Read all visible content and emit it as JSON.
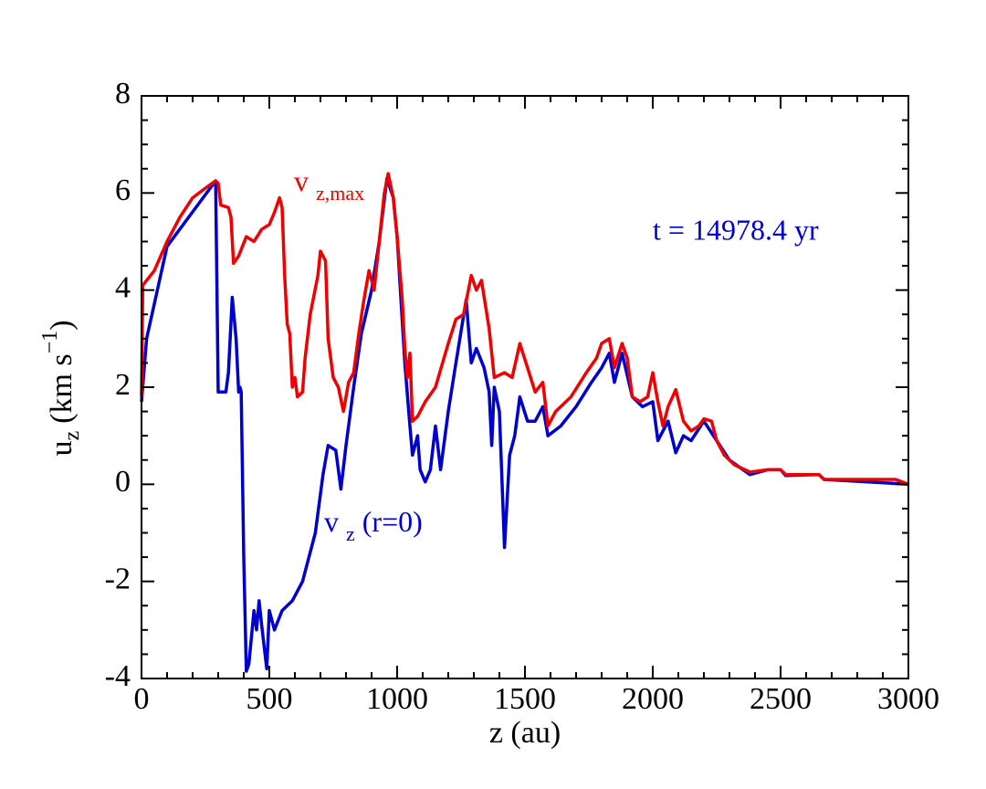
{
  "chart_data": {
    "type": "line",
    "x_label": "z (au)",
    "y_label": {
      "main": "u",
      "sub": "z",
      "unit": "(km s",
      "sup": "−1",
      "close": ")"
    },
    "xlim": [
      0,
      3000
    ],
    "ylim": [
      -4,
      8
    ],
    "xticks": [
      0,
      500,
      1000,
      1500,
      2000,
      2500,
      3000
    ],
    "yticks": [
      -4,
      -2,
      0,
      2,
      4,
      6,
      8
    ],
    "annotation": "t =  14978.4 yr",
    "annotation_color": "#0000cc",
    "series": [
      {
        "name": {
          "main": "v",
          "sub": "z",
          "after": "(r=0)"
        },
        "color": "#0000cc",
        "x": [
          0,
          20,
          100,
          290,
          300,
          330,
          340,
          355,
          370,
          380,
          385,
          390,
          400,
          410,
          420,
          440,
          450,
          460,
          470,
          490,
          500,
          520,
          550,
          590,
          630,
          680,
          710,
          730,
          760,
          780,
          800,
          830,
          860,
          900,
          930,
          960,
          985,
          1000,
          1030,
          1050,
          1060,
          1080,
          1090,
          1110,
          1130,
          1150,
          1170,
          1200,
          1230,
          1270,
          1290,
          1310,
          1340,
          1360,
          1370,
          1380,
          1400,
          1420,
          1440,
          1460,
          1480,
          1510,
          1540,
          1570,
          1590,
          1640,
          1700,
          1760,
          1800,
          1830,
          1850,
          1880,
          1920,
          1960,
          2000,
          2020,
          2060,
          2090,
          2120,
          2150,
          2200,
          2250,
          2300,
          2380,
          2450,
          2500,
          2520,
          2650,
          2670,
          3000
        ],
        "values": [
          1.7,
          3.0,
          4.9,
          6.25,
          1.9,
          1.9,
          2.3,
          3.85,
          3.0,
          1.9,
          2.0,
          1.9,
          -1.5,
          -3.85,
          -3.7,
          -2.6,
          -3.0,
          -2.4,
          -2.9,
          -3.8,
          -2.6,
          -3.0,
          -2.6,
          -2.4,
          -2.0,
          -1.0,
          0.2,
          0.8,
          0.7,
          -0.1,
          0.8,
          2.0,
          3.1,
          4.0,
          5.0,
          6.3,
          5.9,
          5.1,
          2.5,
          1.2,
          0.6,
          1.0,
          0.3,
          0.05,
          0.3,
          1.2,
          0.3,
          1.5,
          2.5,
          3.8,
          2.5,
          2.8,
          2.4,
          1.9,
          0.8,
          2.0,
          1.5,
          -1.3,
          0.6,
          1.0,
          1.8,
          1.3,
          1.3,
          1.6,
          1.0,
          1.2,
          1.6,
          2.1,
          2.4,
          2.7,
          2.1,
          2.7,
          1.8,
          1.6,
          1.7,
          0.9,
          1.3,
          0.65,
          1.0,
          0.9,
          1.3,
          0.9,
          0.5,
          0.2,
          0.3,
          0.3,
          0.18,
          0.2,
          0.1,
          0.0
        ]
      },
      {
        "name": {
          "main": "v",
          "sub": "z,max"
        },
        "color": "#ee0000",
        "x": [
          0,
          5,
          50,
          100,
          150,
          200,
          250,
          290,
          300,
          310,
          340,
          350,
          360,
          380,
          410,
          440,
          470,
          500,
          520,
          540,
          550,
          560,
          570,
          580,
          590,
          600,
          610,
          630,
          640,
          660,
          690,
          700,
          720,
          730,
          750,
          770,
          790,
          810,
          830,
          850,
          870,
          890,
          910,
          930,
          950,
          965,
          985,
          1000,
          1020,
          1030,
          1040,
          1050,
          1060,
          1080,
          1110,
          1150,
          1200,
          1230,
          1260,
          1290,
          1310,
          1330,
          1360,
          1380,
          1420,
          1450,
          1480,
          1510,
          1540,
          1570,
          1590,
          1620,
          1680,
          1740,
          1780,
          1800,
          1830,
          1850,
          1880,
          1900,
          1920,
          1950,
          1980,
          2000,
          2020,
          2040,
          2060,
          2090,
          2120,
          2150,
          2180,
          2200,
          2230,
          2250,
          2280,
          2320,
          2380,
          2450,
          2500,
          2520,
          2650,
          2670,
          2900,
          2950,
          3000
        ],
        "values": [
          1.8,
          4.1,
          4.4,
          5.0,
          5.5,
          5.9,
          6.1,
          6.25,
          6.2,
          5.75,
          5.7,
          5.5,
          4.55,
          4.7,
          5.1,
          5.0,
          5.25,
          5.35,
          5.6,
          5.9,
          5.7,
          4.3,
          3.3,
          3.1,
          2.0,
          2.2,
          1.8,
          1.9,
          2.6,
          3.5,
          4.3,
          4.8,
          4.6,
          3.0,
          2.2,
          2.0,
          1.5,
          2.1,
          2.3,
          3.1,
          3.8,
          4.4,
          4.0,
          5.0,
          6.0,
          6.4,
          5.9,
          5.1,
          3.8,
          2.8,
          2.2,
          2.7,
          1.3,
          1.4,
          1.7,
          2.0,
          2.9,
          3.4,
          3.5,
          4.3,
          4.0,
          4.2,
          3.2,
          2.2,
          2.3,
          2.2,
          2.9,
          2.4,
          1.9,
          2.1,
          1.2,
          1.5,
          1.8,
          2.3,
          2.6,
          2.9,
          3.0,
          2.4,
          2.9,
          2.6,
          1.8,
          1.7,
          1.8,
          2.3,
          1.7,
          1.2,
          1.6,
          1.95,
          1.3,
          1.1,
          1.2,
          1.35,
          1.3,
          0.9,
          0.6,
          0.4,
          0.25,
          0.3,
          0.3,
          0.2,
          0.2,
          0.1,
          0.1,
          0.1,
          0.0
        ]
      }
    ]
  }
}
